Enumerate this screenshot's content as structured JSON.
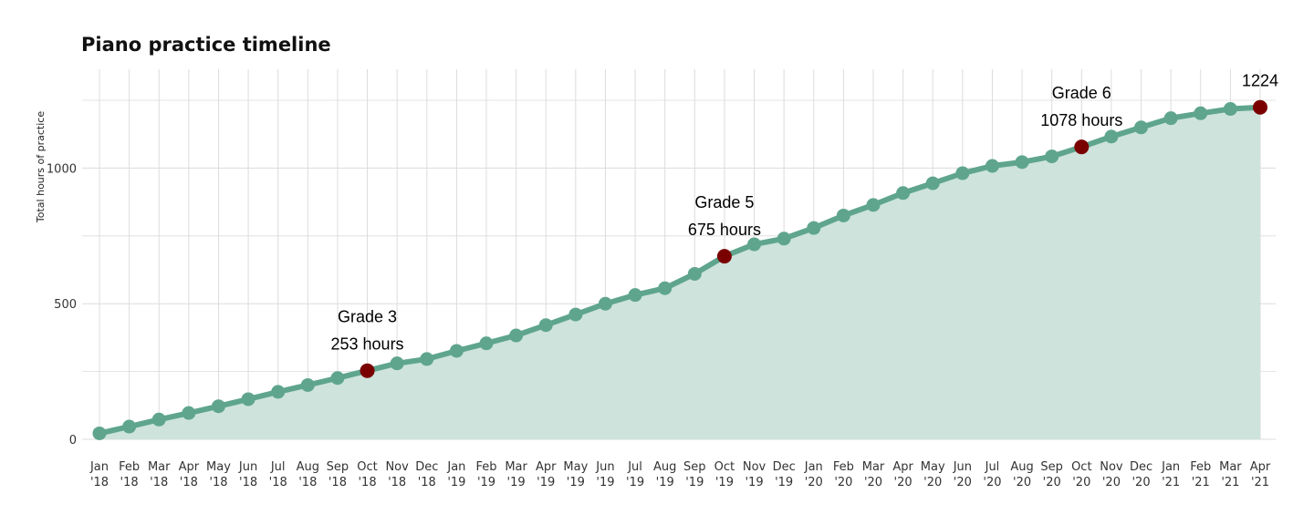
{
  "chart_data": {
    "type": "area",
    "title": "Piano practice timeline",
    "xlabel": "",
    "ylabel": "Total hours of practice",
    "ylim": [
      0,
      1360
    ],
    "yticks": [
      0,
      500,
      1000
    ],
    "grid": true,
    "colors": {
      "line": "#5fa58e",
      "fill": "#cde3dc",
      "highlight": "#7a0000",
      "grid": "#dcdcdc"
    },
    "categories": [
      [
        "Jan",
        "'18"
      ],
      [
        "Feb",
        "'18"
      ],
      [
        "Mar",
        "'18"
      ],
      [
        "Apr",
        "'18"
      ],
      [
        "May",
        "'18"
      ],
      [
        "Jun",
        "'18"
      ],
      [
        "Jul",
        "'18"
      ],
      [
        "Aug",
        "'18"
      ],
      [
        "Sep",
        "'18"
      ],
      [
        "Oct",
        "'18"
      ],
      [
        "Nov",
        "'18"
      ],
      [
        "Dec",
        "'18"
      ],
      [
        "Jan",
        "'19"
      ],
      [
        "Feb",
        "'19"
      ],
      [
        "Mar",
        "'19"
      ],
      [
        "Apr",
        "'19"
      ],
      [
        "May",
        "'19"
      ],
      [
        "Jun",
        "'19"
      ],
      [
        "Jul",
        "'19"
      ],
      [
        "Aug",
        "'19"
      ],
      [
        "Sep",
        "'19"
      ],
      [
        "Oct",
        "'19"
      ],
      [
        "Nov",
        "'19"
      ],
      [
        "Dec",
        "'19"
      ],
      [
        "Jan",
        "'20"
      ],
      [
        "Feb",
        "'20"
      ],
      [
        "Mar",
        "'20"
      ],
      [
        "Apr",
        "'20"
      ],
      [
        "May",
        "'20"
      ],
      [
        "Jun",
        "'20"
      ],
      [
        "Jul",
        "'20"
      ],
      [
        "Aug",
        "'20"
      ],
      [
        "Sep",
        "'20"
      ],
      [
        "Oct",
        "'20"
      ],
      [
        "Nov",
        "'20"
      ],
      [
        "Dec",
        "'20"
      ],
      [
        "Jan",
        "'21"
      ],
      [
        "Feb",
        "'21"
      ],
      [
        "Mar",
        "'21"
      ],
      [
        "Apr",
        "'21"
      ]
    ],
    "values": [
      22,
      47,
      73,
      97,
      122,
      148,
      175,
      200,
      226,
      253,
      280,
      296,
      326,
      354,
      383,
      421,
      460,
      500,
      532,
      557,
      610,
      675,
      719,
      740,
      779,
      825,
      864,
      908,
      944,
      981,
      1008,
      1022,
      1043,
      1078,
      1116,
      1150,
      1184,
      1202,
      1218,
      1224
    ],
    "highlights": [
      9,
      21,
      33,
      39
    ],
    "annotations": [
      {
        "index": 9,
        "lines": [
          "Grade 3",
          "253 hours"
        ]
      },
      {
        "index": 21,
        "lines": [
          "Grade 5",
          "675 hours"
        ]
      },
      {
        "index": 33,
        "lines": [
          "Grade 6",
          "1078 hours"
        ]
      },
      {
        "index": 39,
        "lines": [
          "1224"
        ]
      }
    ]
  }
}
